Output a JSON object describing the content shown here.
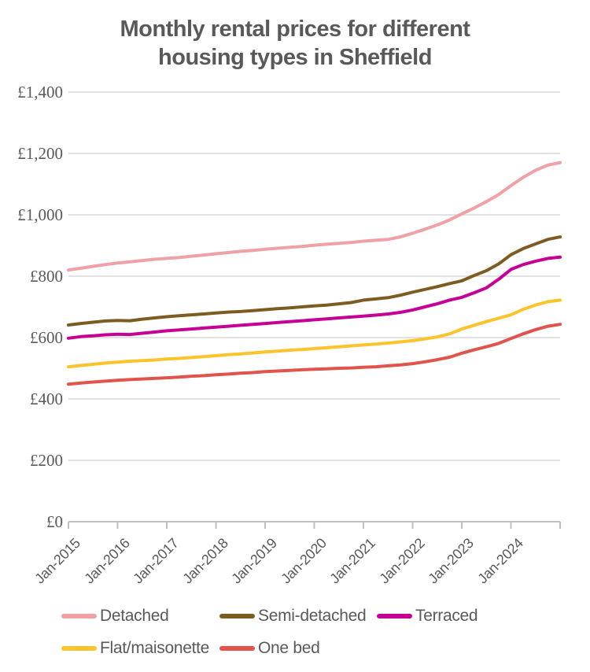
{
  "title_lines": [
    "Monthly rental prices for different",
    "housing types in Sheffield"
  ],
  "style": {
    "background": "#ffffff",
    "text_color": "#595959",
    "gridline_color": "#d9d9d9",
    "axis_color": "#bfbfbf"
  },
  "chart_data": {
    "type": "line",
    "title": "Monthly rental prices for different housing types in Sheffield",
    "xlabel": "",
    "ylabel": "",
    "grid": "horizontal",
    "legend_position": "bottom",
    "y_axis": {
      "min": 0,
      "max": 1400,
      "step": 200,
      "tick_labels": [
        "£1,400",
        "£1,200",
        "£1,000",
        "£800",
        "£600",
        "£400",
        "£200",
        "£0"
      ]
    },
    "x_axis": {
      "tick_labels": [
        "Jan-2015",
        "Jan-2016",
        "Jan-2017",
        "Jan-2018",
        "Jan-2019",
        "Jan-2020",
        "Jan-2021",
        "Jan-2022",
        "Jan-2023",
        "Jan-2024"
      ]
    },
    "categories": [
      "Jan-2015",
      "Apr-2015",
      "Jul-2015",
      "Oct-2015",
      "Jan-2016",
      "Apr-2016",
      "Jul-2016",
      "Oct-2016",
      "Jan-2017",
      "Apr-2017",
      "Jul-2017",
      "Oct-2017",
      "Jan-2018",
      "Apr-2018",
      "Jul-2018",
      "Oct-2018",
      "Jan-2019",
      "Apr-2019",
      "Jul-2019",
      "Oct-2019",
      "Jan-2020",
      "Apr-2020",
      "Jul-2020",
      "Oct-2020",
      "Jan-2021",
      "Apr-2021",
      "Jul-2021",
      "Oct-2021",
      "Jan-2022",
      "Apr-2022",
      "Jul-2022",
      "Oct-2022",
      "Jan-2023",
      "Apr-2023",
      "Jul-2023",
      "Oct-2023",
      "Jan-2024",
      "Apr-2024",
      "Jul-2024",
      "Oct-2024",
      "Dec-2024"
    ],
    "series": [
      {
        "name": "Detached",
        "color": "#efa1a6",
        "values": [
          820,
          826,
          832,
          838,
          843,
          847,
          851,
          855,
          858,
          861,
          865,
          869,
          873,
          877,
          881,
          884,
          888,
          891,
          894,
          897,
          901,
          904,
          907,
          910,
          914,
          917,
          920,
          928,
          940,
          953,
          967,
          983,
          1003,
          1022,
          1043,
          1066,
          1095,
          1122,
          1145,
          1162,
          1170
        ]
      },
      {
        "name": "Semi-detached",
        "color": "#7d5c22",
        "values": [
          641,
          646,
          650,
          654,
          656,
          655,
          660,
          664,
          668,
          671,
          674,
          677,
          680,
          683,
          685,
          688,
          691,
          694,
          697,
          700,
          703,
          706,
          710,
          714,
          722,
          726,
          730,
          738,
          748,
          757,
          766,
          776,
          785,
          802,
          818,
          840,
          870,
          890,
          905,
          920,
          928
        ]
      },
      {
        "name": "Terraced",
        "color": "#c60095",
        "values": [
          598,
          603,
          606,
          609,
          611,
          610,
          614,
          618,
          622,
          625,
          628,
          631,
          634,
          637,
          640,
          643,
          646,
          649,
          652,
          655,
          658,
          661,
          664,
          667,
          670,
          673,
          677,
          682,
          690,
          700,
          710,
          722,
          731,
          746,
          762,
          790,
          822,
          838,
          849,
          858,
          862
        ]
      },
      {
        "name": "Flat/maisonette",
        "color": "#fcc32b",
        "values": [
          505,
          509,
          513,
          517,
          520,
          523,
          525,
          527,
          530,
          532,
          535,
          538,
          541,
          544,
          547,
          550,
          553,
          556,
          559,
          561,
          564,
          567,
          570,
          573,
          576,
          579,
          582,
          586,
          590,
          596,
          602,
          612,
          628,
          640,
          652,
          663,
          674,
          692,
          706,
          717,
          722
        ]
      },
      {
        "name": "One bed",
        "color": "#e0544b",
        "values": [
          448,
          452,
          455,
          458,
          461,
          463,
          465,
          467,
          469,
          471,
          474,
          476,
          479,
          481,
          484,
          486,
          489,
          491,
          493,
          495,
          497,
          498,
          500,
          501,
          503,
          505,
          508,
          511,
          515,
          521,
          528,
          536,
          549,
          560,
          570,
          581,
          597,
          612,
          626,
          637,
          643
        ]
      }
    ]
  }
}
